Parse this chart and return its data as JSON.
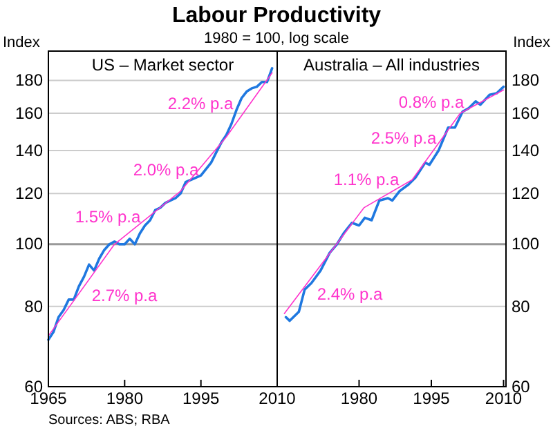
{
  "chart_data": [
    {
      "type": "line",
      "title": "US – Market sector",
      "ylabel": "Index",
      "log": true,
      "grid": "y",
      "annotations": [
        "Labour Productivity",
        "1980 = 100, log scale",
        "Sources: ABS; RBA",
        "2.7% p.a",
        "1.5% p.a",
        "2.0% p.a",
        "2.2% p.a"
      ],
      "xlim": [
        1965,
        2010
      ],
      "xticks": [
        1965,
        1980,
        1995,
        2010
      ],
      "ylim": [
        60,
        200
      ],
      "yticks": [
        60,
        80,
        100,
        120,
        140,
        160,
        180
      ],
      "ref_lines": [
        {
          "axis": "y",
          "value": 100,
          "color": "#999999"
        }
      ],
      "series": [
        {
          "color": "#1f78e0",
          "x": [
            1965,
            1966,
            1967,
            1968,
            1969,
            1970,
            1971,
            1972,
            1973,
            1974,
            1975,
            1976,
            1977,
            1978,
            1979,
            1980,
            1981,
            1982,
            1983,
            1984,
            1985,
            1986,
            1987,
            1988,
            1989,
            1990,
            1991,
            1992,
            1993,
            1994,
            1995,
            1996,
            1997,
            1998,
            1999,
            2000,
            2001,
            2002,
            2003,
            2004,
            2005,
            2006,
            2007,
            2008,
            2009
          ],
          "values": [
            71,
            73,
            77,
            79,
            82,
            82,
            86,
            89,
            93,
            91,
            95,
            98,
            100,
            101,
            100,
            100,
            102,
            100,
            104,
            107,
            109,
            113,
            114,
            116,
            117,
            118,
            120,
            125,
            126,
            127,
            128,
            131,
            134,
            139,
            144,
            148,
            154,
            162,
            169,
            173,
            175,
            176,
            179,
            179,
            188
          ]
        },
        {
          "type": "line",
          "color": "#ff33cc",
          "x": [
            1965,
            1978,
            1991,
            2000,
            2009
          ],
          "values": [
            72,
            100,
            121,
            147,
            185
          ]
        }
      ]
    },
    {
      "type": "line",
      "title": "Australia – All industries",
      "ylabel": "Index",
      "log": true,
      "grid": "y",
      "annotations": [
        "2.4% p.a",
        "1.1% p.a",
        "2.5% p.a",
        "0.8% p.a"
      ],
      "xlim": [
        1963,
        2010.5
      ],
      "xticks": [
        1980,
        1995,
        2010
      ],
      "ylim": [
        60,
        200
      ],
      "yticks": [
        60,
        80,
        100,
        120,
        140,
        160,
        180
      ],
      "ref_lines": [
        {
          "axis": "y",
          "value": 100,
          "color": "#999999"
        }
      ],
      "series": [
        {
          "color": "#1f78e0",
          "x": [
            1964.8,
            1965.6,
            1967.5,
            1968.7,
            1970.1,
            1972,
            1973.9,
            1975.4,
            1976.8,
            1978.5,
            1980,
            1981.2,
            1982.6,
            1984.2,
            1986,
            1986.9,
            1988.4,
            1990.3,
            1991.7,
            1993.7,
            1994.6,
            1996.5,
            1998.5,
            1999.9,
            2001.5,
            2002.8,
            2004.2,
            2005.2,
            2007.1,
            2008.6,
            2010
          ],
          "values": [
            77,
            76,
            78.5,
            85,
            87,
            91,
            97,
            100,
            104,
            108,
            107,
            110,
            109,
            117,
            118,
            117,
            121,
            124,
            127,
            134,
            133,
            140,
            152,
            152,
            161,
            163,
            167,
            165,
            171,
            172,
            176
          ]
        },
        {
          "type": "line",
          "color": "#ff33cc",
          "x": [
            1964.5,
            1981,
            1991,
            2001,
            2010
          ],
          "values": [
            78,
            114,
            126,
            160,
            174
          ]
        }
      ]
    }
  ]
}
